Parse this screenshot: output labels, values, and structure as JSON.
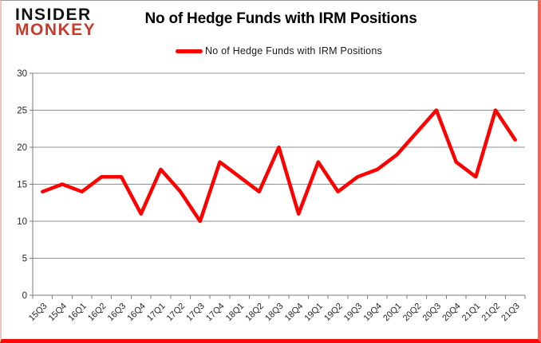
{
  "logo": {
    "line1": "INSIDER",
    "line2": "MONKEY"
  },
  "header": {
    "title": "No of Hedge Funds with IRM Positions"
  },
  "legend": {
    "label": "No of Hedge Funds with IRM Positions"
  },
  "colors": {
    "series_line": "#ff0000",
    "legend_swatch": "#ff0000",
    "gridline": "#8f8f8f",
    "axis_line": "#7a7a7a",
    "axis_text": "#262626",
    "title_text": "#000000",
    "logo_black": "#111111",
    "logo_red": "#c63b2b",
    "frame_bottom_red": "#fb0b05",
    "frame_right_red": "#ef675c"
  },
  "chart_data": {
    "type": "line",
    "title": "No of Hedge Funds with IRM Positions",
    "xlabel": "",
    "ylabel": "",
    "categories": [
      "15Q3",
      "15Q4",
      "16Q1",
      "16Q2",
      "16Q3",
      "16Q4",
      "17Q1",
      "17Q2",
      "17Q3",
      "17Q4",
      "18Q1",
      "18Q2",
      "18Q3",
      "18Q4",
      "19Q1",
      "19Q2",
      "19Q3",
      "19Q4",
      "20Q1",
      "20Q2",
      "20Q3",
      "20Q4",
      "21Q1",
      "21Q2",
      "21Q3"
    ],
    "series": [
      {
        "name": "No of Hedge Funds with IRM Positions",
        "values": [
          14,
          15,
          14,
          16,
          16,
          11,
          17,
          14,
          10,
          18,
          16,
          14,
          20,
          11,
          18,
          14,
          16,
          17,
          19,
          22,
          25,
          18,
          16,
          25,
          21
        ]
      }
    ],
    "ylim": [
      0,
      30
    ],
    "yticks": [
      0,
      5,
      10,
      15,
      20,
      25,
      30
    ],
    "grid": true,
    "legend_position": "top-center",
    "x_label_rotation_deg": -45
  }
}
